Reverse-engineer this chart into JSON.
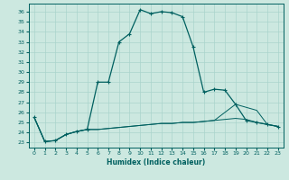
{
  "xlabel": "Humidex (Indice chaleur)",
  "ylabel": "",
  "bg_color": "#cce8e0",
  "line_color": "#006060",
  "grid_color": "#aad4cc",
  "xlim": [
    -0.5,
    23.5
  ],
  "ylim": [
    22.5,
    36.8
  ],
  "yticks": [
    23,
    24,
    25,
    26,
    27,
    28,
    29,
    30,
    31,
    32,
    33,
    34,
    35,
    36
  ],
  "xticks": [
    0,
    1,
    2,
    3,
    4,
    5,
    6,
    7,
    8,
    9,
    10,
    11,
    12,
    13,
    14,
    15,
    16,
    17,
    18,
    19,
    20,
    21,
    22,
    23
  ],
  "line1_x": [
    0,
    1,
    2,
    3,
    4,
    5,
    6,
    7,
    8,
    9,
    10,
    11,
    12,
    13,
    14,
    15,
    16,
    17,
    18,
    19,
    20,
    21,
    22,
    23
  ],
  "line1_y": [
    25.5,
    23.1,
    23.2,
    23.8,
    24.1,
    24.3,
    29.0,
    29.0,
    33.0,
    33.8,
    36.2,
    35.8,
    36.0,
    35.9,
    35.5,
    32.5,
    28.0,
    28.3,
    28.2,
    26.8,
    25.2,
    25.0,
    24.8,
    24.6
  ],
  "line2_x": [
    0,
    1,
    2,
    3,
    4,
    5,
    6,
    7,
    8,
    9,
    10,
    11,
    12,
    13,
    14,
    15,
    16,
    17,
    18,
    19,
    20,
    21,
    22,
    23
  ],
  "line2_y": [
    25.5,
    23.1,
    23.2,
    23.8,
    24.1,
    24.3,
    24.3,
    24.4,
    24.5,
    24.6,
    24.7,
    24.8,
    24.9,
    24.9,
    25.0,
    25.0,
    25.1,
    25.2,
    25.3,
    25.4,
    25.3,
    25.0,
    24.8,
    24.6
  ],
  "line3_x": [
    0,
    1,
    2,
    3,
    4,
    5,
    6,
    7,
    8,
    9,
    10,
    11,
    12,
    13,
    14,
    15,
    16,
    17,
    18,
    19,
    20,
    21,
    22,
    23
  ],
  "line3_y": [
    25.5,
    23.1,
    23.2,
    23.8,
    24.1,
    24.3,
    24.3,
    24.4,
    24.5,
    24.6,
    24.7,
    24.8,
    24.9,
    24.9,
    25.0,
    25.0,
    25.1,
    25.2,
    26.0,
    26.8,
    26.5,
    26.2,
    24.8,
    24.6
  ]
}
